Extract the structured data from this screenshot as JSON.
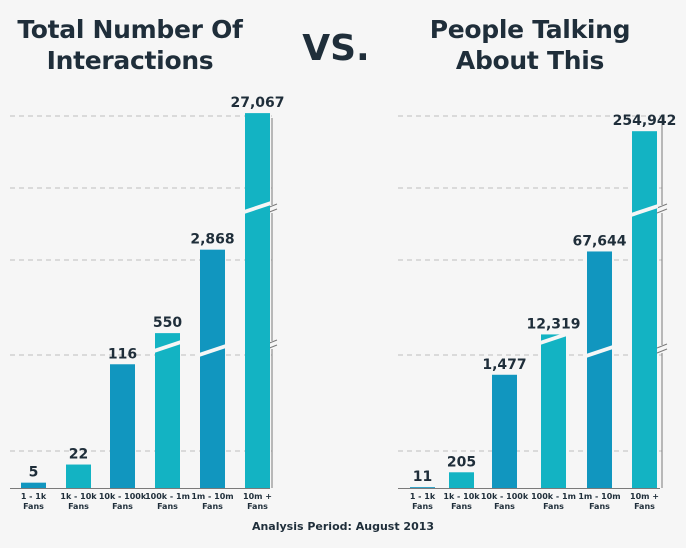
{
  "headline": {
    "left_title_line1": "Total Number Of",
    "left_title_line2": "Interactions",
    "vs": "VS.",
    "right_title_line1": "People Talking",
    "right_title_line2": "About This"
  },
  "footer": "Analysis Period: August 2013",
  "colors": {
    "teal": "#13b3c3",
    "blue": "#1196bf",
    "text": "#1f2e3a",
    "grid": "#bfbfbf",
    "axis": "#7a7a7a"
  },
  "chart_data": [
    {
      "type": "bar",
      "title": "Total Number Of Interactions",
      "categories": [
        [
          "1 - 1k",
          "Fans"
        ],
        [
          "1k - 10k",
          "Fans"
        ],
        [
          "10k - 100k",
          "Fans"
        ],
        [
          "100k - 1m",
          "Fans"
        ],
        [
          "1m - 10m",
          "Fans"
        ],
        [
          "10m  +",
          "Fans"
        ]
      ],
      "values": [
        5,
        22,
        116,
        550,
        2868,
        27067
      ],
      "value_labels": [
        "5",
        "22",
        "116",
        "550",
        "2,868",
        "27,067"
      ],
      "bar_colors": [
        "#1196bf",
        "#13b3c3",
        "#1196bf",
        "#13b3c3",
        "#1196bf",
        "#13b3c3"
      ],
      "broken_axis": true,
      "grid": true
    },
    {
      "type": "bar",
      "title": "People Talking About This",
      "categories": [
        [
          "1 - 1k",
          "Fans"
        ],
        [
          "1k - 10k",
          "Fans"
        ],
        [
          "10k - 100k",
          "Fans"
        ],
        [
          "100k - 1m",
          "Fans"
        ],
        [
          "1m - 10m",
          "Fans"
        ],
        [
          "10m  +",
          "Fans"
        ]
      ],
      "values": [
        11,
        205,
        1477,
        12319,
        67644,
        254942
      ],
      "value_labels": [
        "11",
        "205",
        "1,477",
        "12,319",
        "67,644",
        "254,942"
      ],
      "bar_colors": [
        "#1196bf",
        "#13b3c3",
        "#1196bf",
        "#13b3c3",
        "#1196bf",
        "#13b3c3"
      ],
      "broken_axis": true,
      "grid": true
    }
  ]
}
